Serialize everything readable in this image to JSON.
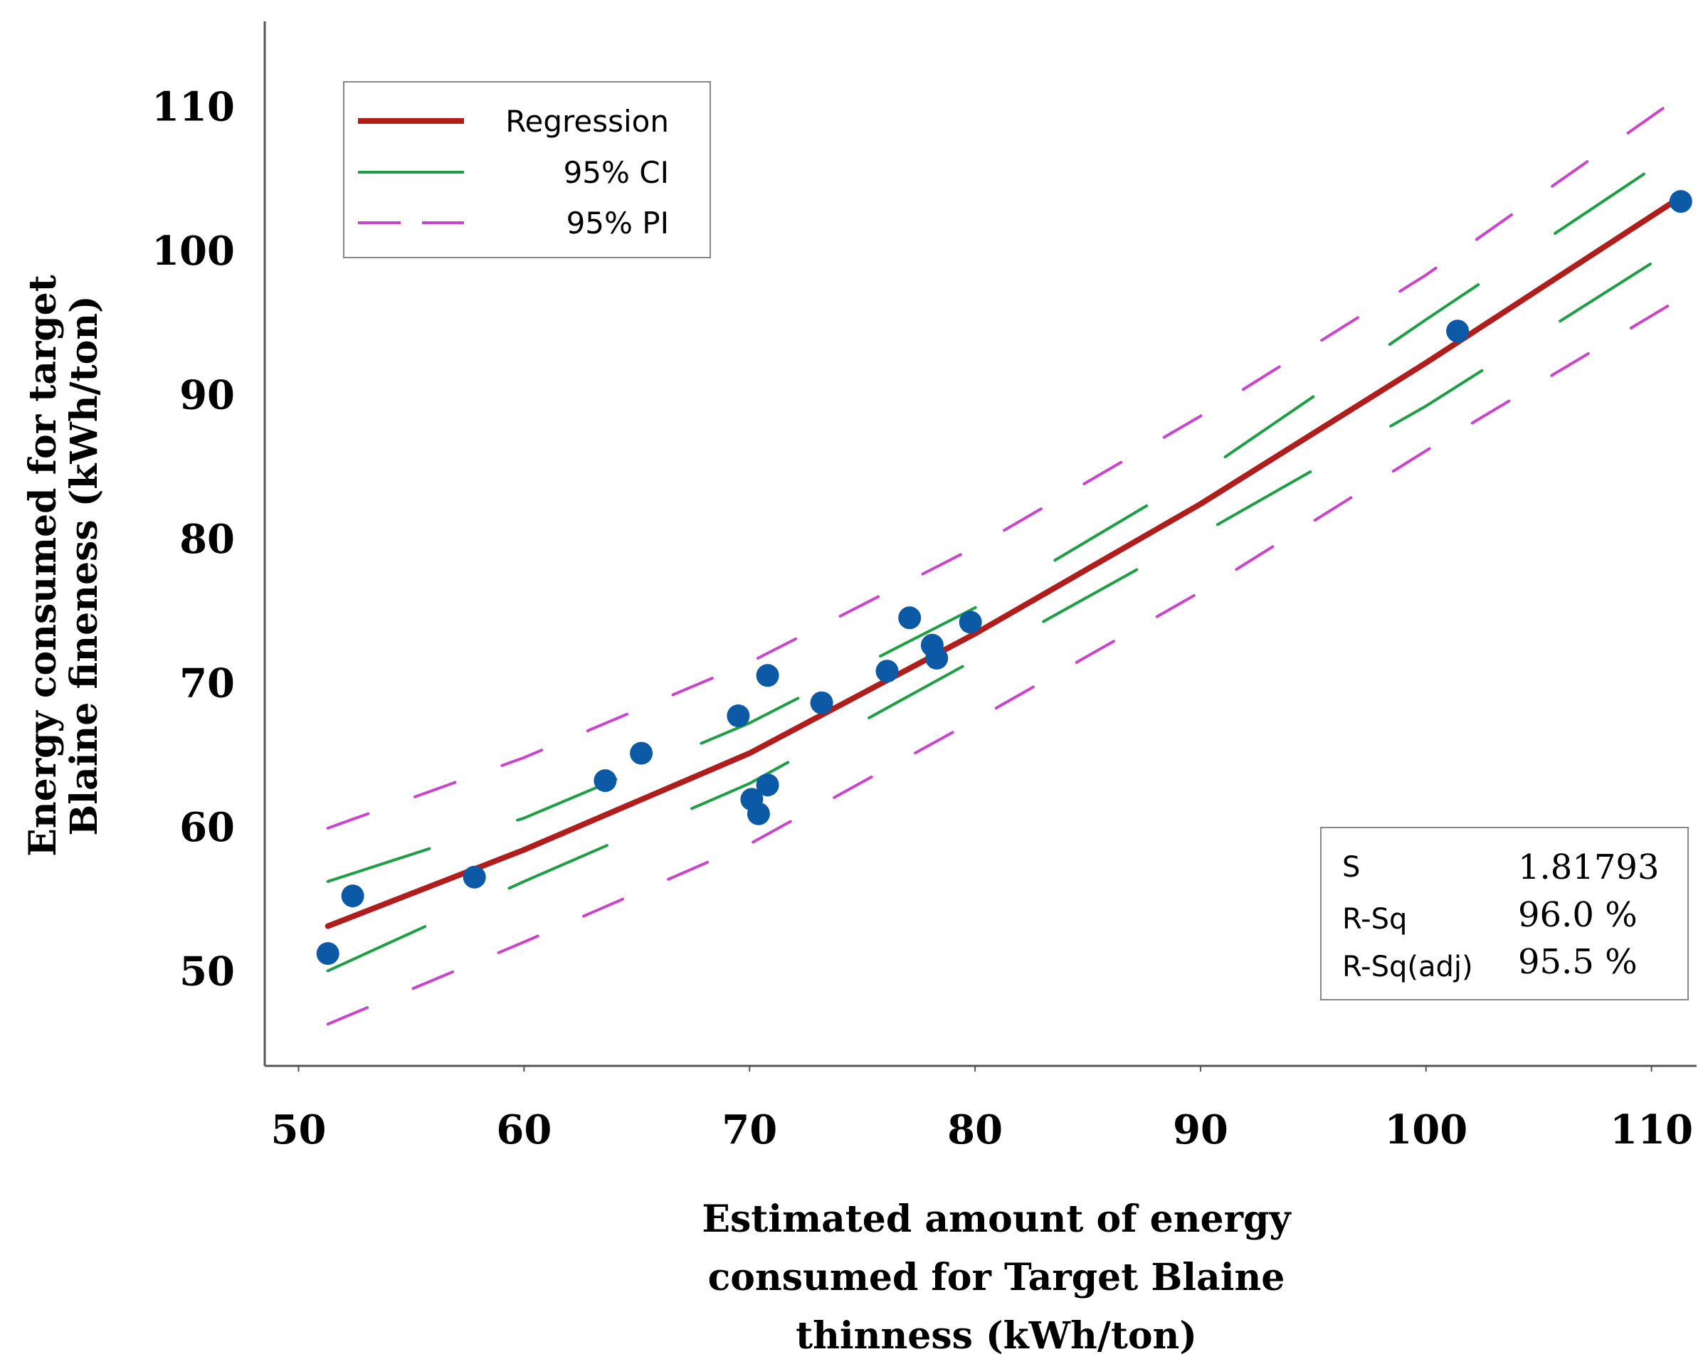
{
  "chart_data": {
    "type": "scatter",
    "xlabel_lines": [
      "Estimated  amount  of  energy",
      "consumed  for  Target  Blaine",
      "thinness  (kWh/ton)"
    ],
    "ylabel_lines": [
      "Energy  consumed  for  target",
      "Blaine  fineness  (kWh/ton)"
    ],
    "xlim": [
      48.5,
      112
    ],
    "ylim": [
      43.5,
      116
    ],
    "x_ticks": [
      50,
      60,
      70,
      80,
      90,
      100,
      110
    ],
    "y_ticks": [
      50,
      60,
      70,
      80,
      90,
      100,
      110
    ],
    "legend": {
      "position": "top-left",
      "entries": [
        {
          "label": "Regression",
          "style": "solid-thick",
          "color": "#b01d1d"
        },
        {
          "label": "95% CI",
          "style": "solid-thin",
          "color": "#1e9e45"
        },
        {
          "label": "95% PI",
          "style": "dashed",
          "color": "#cc44cc"
        }
      ]
    },
    "stats": {
      "position": "bottom-right",
      "rows": [
        {
          "key": "S",
          "value": "1.81793"
        },
        {
          "key": "R-Sq",
          "value": "96.0 %"
        },
        {
          "key": "R-Sq(adj)",
          "value": "95.5 %"
        }
      ]
    },
    "series": [
      {
        "name": "Observations",
        "type": "scatter",
        "color": "#0c5aa6",
        "points": [
          [
            51.3,
            51.3
          ],
          [
            52.4,
            55.3
          ],
          [
            57.8,
            56.6
          ],
          [
            63.6,
            63.3
          ],
          [
            65.2,
            65.2
          ],
          [
            69.5,
            67.8
          ],
          [
            70.1,
            62.0
          ],
          [
            70.4,
            61.0
          ],
          [
            70.8,
            63.0
          ],
          [
            70.8,
            70.6
          ],
          [
            73.2,
            68.7
          ],
          [
            76.1,
            70.9
          ],
          [
            77.1,
            74.6
          ],
          [
            78.1,
            72.7
          ],
          [
            78.3,
            71.8
          ],
          [
            79.8,
            74.3
          ],
          [
            101.4,
            94.5
          ],
          [
            111.3,
            103.5
          ]
        ]
      },
      {
        "name": "Regression",
        "type": "line",
        "color": "#b01d1d",
        "points": [
          [
            51.3,
            53.2
          ],
          [
            60,
            58.5
          ],
          [
            70,
            65.2
          ],
          [
            80,
            73.5
          ],
          [
            90,
            82.5
          ],
          [
            100,
            92.3
          ],
          [
            111,
            103.5
          ]
        ]
      },
      {
        "name": "95% CI upper",
        "type": "line",
        "color": "#1e9e45",
        "points": [
          [
            51.3,
            56.3
          ],
          [
            60,
            60.7
          ],
          [
            70,
            67.3
          ],
          [
            80,
            75.3
          ],
          [
            90,
            84.6
          ],
          [
            100,
            95.3
          ],
          [
            111,
            106.8
          ]
        ]
      },
      {
        "name": "95% CI lower",
        "type": "line",
        "color": "#1e9e45",
        "points": [
          [
            51.3,
            50.1
          ],
          [
            60,
            56.3
          ],
          [
            70,
            63.1
          ],
          [
            80,
            71.7
          ],
          [
            90,
            80.4
          ],
          [
            100,
            89.3
          ],
          [
            111,
            100.2
          ]
        ]
      },
      {
        "name": "95% PI upper",
        "type": "line",
        "color": "#cc44cc",
        "points": [
          [
            51.3,
            60.0
          ],
          [
            60,
            64.9
          ],
          [
            70,
            71.5
          ],
          [
            80,
            79.5
          ],
          [
            90,
            88.6
          ],
          [
            100,
            98.4
          ],
          [
            111,
            110.5
          ]
        ]
      },
      {
        "name": "95% PI lower",
        "type": "line",
        "color": "#cc44cc",
        "points": [
          [
            51.3,
            46.4
          ],
          [
            60,
            52.1
          ],
          [
            70,
            58.9
          ],
          [
            80,
            67.5
          ],
          [
            90,
            76.4
          ],
          [
            100,
            86.2
          ],
          [
            111,
            96.5
          ]
        ]
      }
    ]
  }
}
